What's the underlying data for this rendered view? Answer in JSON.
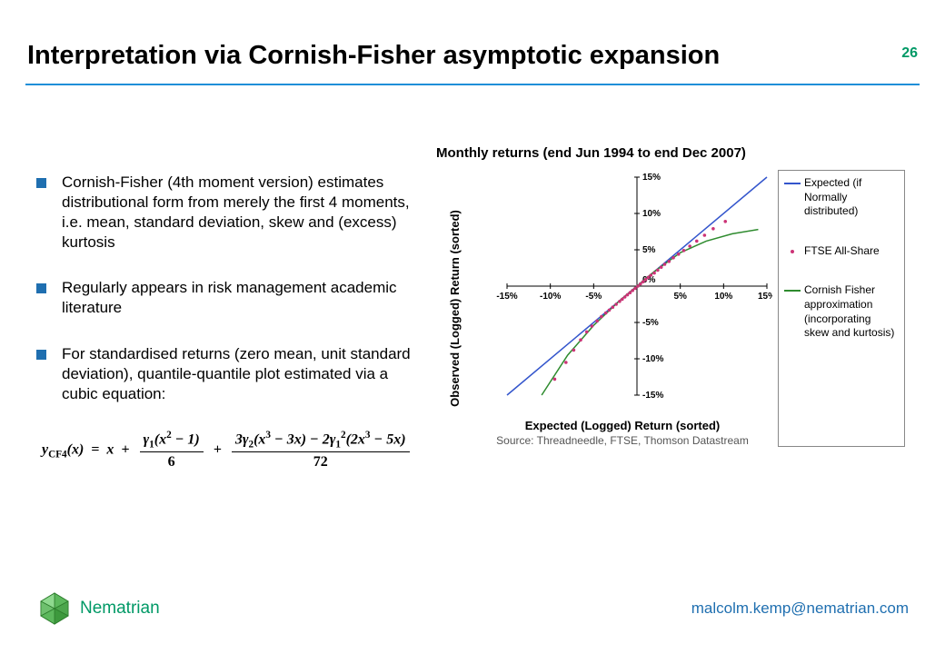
{
  "slide": {
    "title": "Interpretation via Cornish-Fisher asymptotic expansion",
    "page_number": "26",
    "rule_color": "#1f8fd8"
  },
  "bullets": [
    "Cornish-Fisher (4th moment version) estimates distributional form from merely the first 4 moments, i.e. mean, standard deviation, skew and (excess) kurtosis",
    "Regularly appears in risk management academic literature",
    "For standardised returns (zero mean, unit standard deviation), quantile-quantile plot estimated via a cubic equation:"
  ],
  "equation": {
    "label": "y_CF4(x) = x + γ1(x²−1)/6 + (3γ2(x³−3x) − 2γ1²(2x³−5x))/72"
  },
  "chart": {
    "title": "Monthly returns (end Jun 1994 to end Dec 2007)",
    "y_label": "Observed (Logged) Return (sorted)",
    "x_label": "Expected (Logged) Return (sorted)",
    "source": "Source: Threadneedle, FTSE, Thomson Datastream",
    "xlim": [
      -15,
      15
    ],
    "ylim": [
      -15,
      15
    ],
    "tick_step": 5,
    "axis_color": "#000000",
    "background": "#ffffff",
    "series": {
      "expected": {
        "label": "Expected (if Normally distributed)",
        "color": "#3355cc",
        "type": "line",
        "points": [
          [
            -15,
            -15
          ],
          [
            15,
            15
          ]
        ]
      },
      "cf": {
        "label": "Cornish Fisher approximation (incorporating skew and kurtosis)",
        "color": "#2e8b2e",
        "type": "line",
        "points": [
          [
            -11,
            -15
          ],
          [
            -8,
            -9.5
          ],
          [
            -5,
            -5.4
          ],
          [
            -2,
            -2
          ],
          [
            0,
            0
          ],
          [
            2,
            2
          ],
          [
            5,
            4.6
          ],
          [
            8,
            6.2
          ],
          [
            11,
            7.2
          ],
          [
            14,
            7.8
          ]
        ]
      },
      "ftse": {
        "label": "FTSE All-Share",
        "color": "#cc3377",
        "type": "scatter",
        "points": [
          [
            -9.5,
            -12.8
          ],
          [
            -8.2,
            -10.5
          ],
          [
            -7.3,
            -8.8
          ],
          [
            -6.5,
            -7.4
          ],
          [
            -5.8,
            -6.3
          ],
          [
            -5.2,
            -5.5
          ],
          [
            -4.6,
            -4.8
          ],
          [
            -4.1,
            -4.2
          ],
          [
            -3.6,
            -3.7
          ],
          [
            -3.2,
            -3.3
          ],
          [
            -2.8,
            -2.9
          ],
          [
            -2.4,
            -2.5
          ],
          [
            -2.0,
            -2.1
          ],
          [
            -1.7,
            -1.8
          ],
          [
            -1.4,
            -1.5
          ],
          [
            -1.1,
            -1.2
          ],
          [
            -0.8,
            -0.9
          ],
          [
            -0.5,
            -0.6
          ],
          [
            -0.2,
            -0.3
          ],
          [
            0.1,
            0.0
          ],
          [
            0.4,
            0.3
          ],
          [
            0.7,
            0.6
          ],
          [
            1.0,
            0.9
          ],
          [
            1.3,
            1.2
          ],
          [
            1.6,
            1.5
          ],
          [
            2.0,
            1.8
          ],
          [
            2.4,
            2.2
          ],
          [
            2.8,
            2.6
          ],
          [
            3.2,
            3.0
          ],
          [
            3.7,
            3.4
          ],
          [
            4.2,
            3.9
          ],
          [
            4.8,
            4.4
          ],
          [
            5.4,
            4.9
          ],
          [
            6.1,
            5.5
          ],
          [
            6.9,
            6.2
          ],
          [
            7.8,
            7.0
          ],
          [
            8.8,
            7.9
          ],
          [
            10.2,
            8.9
          ]
        ]
      }
    }
  },
  "footer": {
    "brand": "Nematrian",
    "brand_color": "#009966",
    "email": "malcolm.kemp@nematrian.com",
    "email_color": "#1f6fb0"
  }
}
